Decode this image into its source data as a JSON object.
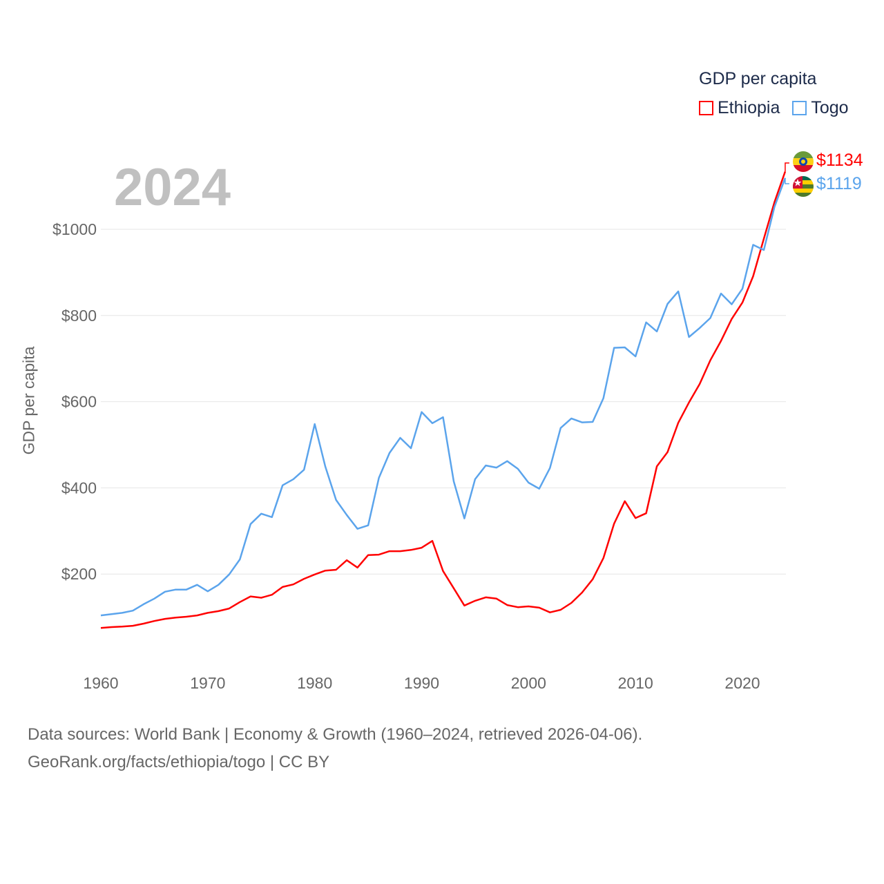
{
  "chart_data": {
    "type": "line",
    "title": "GDP per capita",
    "xlabel": "",
    "ylabel": "GDP per capita",
    "xlim": [
      1960,
      2024
    ],
    "ylim": [
      0,
      1150
    ],
    "x_ticks": [
      "1960",
      "1970",
      "1980",
      "1990",
      "2000",
      "2010",
      "2020"
    ],
    "y_ticks": [
      "$200",
      "$400",
      "$600",
      "$800",
      "$1000"
    ],
    "y_tick_values": [
      200,
      400,
      600,
      800,
      1000
    ],
    "grid": true,
    "legend_placement": "top-right",
    "current_year_label": "2024",
    "x": [
      1960,
      1961,
      1962,
      1963,
      1964,
      1965,
      1966,
      1967,
      1968,
      1969,
      1970,
      1971,
      1972,
      1973,
      1974,
      1975,
      1976,
      1977,
      1978,
      1979,
      1980,
      1981,
      1982,
      1983,
      1984,
      1985,
      1986,
      1987,
      1988,
      1989,
      1990,
      1991,
      1992,
      1993,
      1994,
      1995,
      1996,
      1997,
      1998,
      1999,
      2000,
      2001,
      2002,
      2003,
      2004,
      2005,
      2006,
      2007,
      2008,
      2009,
      2010,
      2011,
      2012,
      2013,
      2014,
      2015,
      2016,
      2017,
      2018,
      2019,
      2020,
      2021,
      2022,
      2023,
      2024
    ],
    "series": [
      {
        "name": "Ethiopia",
        "color": "#ff0000",
        "end_label": "$1134",
        "values": [
          75,
          77,
          78,
          80,
          85,
          91,
          96,
          99,
          101,
          104,
          110,
          114,
          120,
          135,
          148,
          145,
          152,
          170,
          176,
          189,
          199,
          208,
          210,
          232,
          215,
          244,
          245,
          253,
          253,
          256,
          261,
          277,
          207,
          167,
          127,
          138,
          146,
          143,
          128,
          123,
          125,
          122,
          111,
          117,
          133,
          157,
          188,
          237,
          317,
          369,
          330,
          341,
          450,
          483,
          551,
          598,
          641,
          696,
          741,
          792,
          830,
          891,
          978,
          1063,
          1134
        ]
      },
      {
        "name": "Togo",
        "color": "#5ba4ec",
        "end_label": "$1119",
        "values": [
          104,
          107,
          110,
          115,
          130,
          143,
          159,
          164,
          164,
          175,
          160,
          175,
          199,
          234,
          316,
          340,
          332,
          406,
          420,
          442,
          548,
          449,
          372,
          337,
          305,
          313,
          423,
          481,
          516,
          492,
          576,
          550,
          564,
          415,
          329,
          420,
          452,
          447,
          462,
          444,
          412,
          398,
          446,
          539,
          561,
          552,
          553,
          608,
          725,
          726,
          705,
          784,
          763,
          827,
          856,
          750,
          771,
          794,
          851,
          826,
          862,
          964,
          952,
          1052,
          1119
        ]
      }
    ]
  },
  "legend": {
    "title": "GDP per capita",
    "items": [
      "Ethiopia",
      "Togo"
    ]
  },
  "footer": {
    "line1": "Data sources: World Bank | Economy & Growth (1960–2024, retrieved 2026-04-06).",
    "line2": "GeoRank.org/facts/ethiopia/togo | CC BY"
  }
}
